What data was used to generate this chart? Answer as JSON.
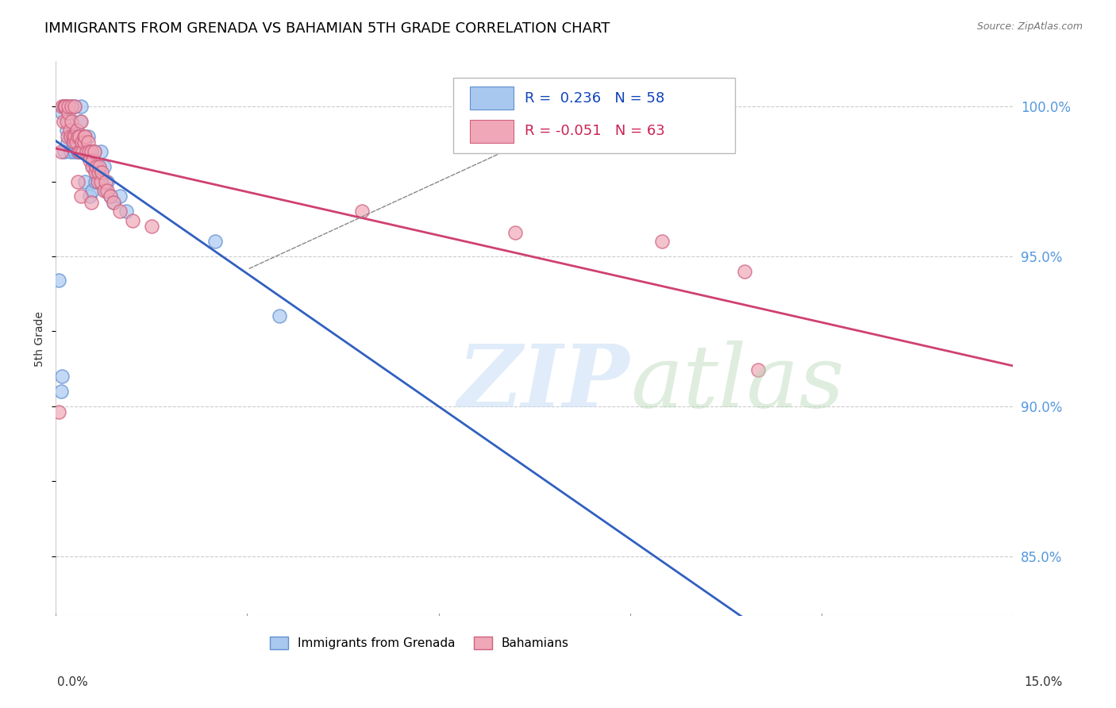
{
  "title": "IMMIGRANTS FROM GRENADA VS BAHAMIAN 5TH GRADE CORRELATION CHART",
  "source": "Source: ZipAtlas.com",
  "ylabel": "5th Grade",
  "y_ticks": [
    85.0,
    90.0,
    95.0,
    100.0
  ],
  "y_tick_labels": [
    "85.0%",
    "90.0%",
    "95.0%",
    "100.0%"
  ],
  "x_range": [
    0.0,
    15.0
  ],
  "y_range": [
    83.0,
    101.5
  ],
  "legend_label_blue": "Immigrants from Grenada",
  "legend_label_pink": "Bahamians",
  "R_blue": 0.236,
  "N_blue": 58,
  "R_pink": -0.051,
  "N_pink": 63,
  "blue_color": "#a8c8f0",
  "pink_color": "#f0a8b8",
  "blue_edge_color": "#6090d0",
  "pink_edge_color": "#d06080",
  "blue_line_color": "#3060c0",
  "pink_line_color": "#d04070",
  "blue_scatter_x": [
    0.05,
    0.08,
    0.1,
    0.1,
    0.12,
    0.13,
    0.13,
    0.15,
    0.15,
    0.15,
    0.17,
    0.18,
    0.2,
    0.2,
    0.22,
    0.23,
    0.25,
    0.25,
    0.27,
    0.28,
    0.3,
    0.3,
    0.32,
    0.33,
    0.35,
    0.36,
    0.37,
    0.38,
    0.4,
    0.41,
    0.42,
    0.44,
    0.45,
    0.46,
    0.48,
    0.5,
    0.52,
    0.53,
    0.55,
    0.57,
    0.58,
    0.6,
    0.62,
    0.63,
    0.65,
    0.67,
    0.68,
    0.7,
    0.72,
    0.75,
    0.78,
    0.8,
    0.85,
    0.9,
    1.0,
    1.1,
    2.5,
    3.5
  ],
  "blue_scatter_y": [
    94.2,
    90.5,
    91.0,
    99.8,
    100.0,
    100.0,
    98.5,
    100.0,
    100.0,
    100.0,
    99.2,
    98.8,
    99.5,
    100.0,
    99.0,
    98.5,
    99.5,
    100.0,
    98.8,
    99.0,
    98.5,
    100.0,
    99.2,
    98.8,
    98.5,
    99.0,
    98.5,
    99.5,
    100.0,
    98.8,
    98.5,
    99.0,
    98.8,
    97.5,
    98.5,
    99.0,
    98.5,
    97.0,
    98.5,
    97.2,
    98.0,
    98.5,
    97.5,
    97.8,
    98.0,
    97.5,
    97.8,
    98.5,
    97.5,
    98.0,
    97.2,
    97.5,
    97.0,
    96.8,
    97.0,
    96.5,
    95.5,
    93.0
  ],
  "pink_scatter_x": [
    0.05,
    0.08,
    0.1,
    0.12,
    0.13,
    0.15,
    0.15,
    0.15,
    0.17,
    0.18,
    0.2,
    0.2,
    0.22,
    0.23,
    0.25,
    0.25,
    0.27,
    0.28,
    0.3,
    0.3,
    0.32,
    0.33,
    0.35,
    0.36,
    0.37,
    0.38,
    0.4,
    0.41,
    0.42,
    0.44,
    0.45,
    0.46,
    0.48,
    0.5,
    0.52,
    0.53,
    0.55,
    0.57,
    0.58,
    0.6,
    0.62,
    0.63,
    0.65,
    0.67,
    0.68,
    0.7,
    0.72,
    0.75,
    0.78,
    0.8,
    0.85,
    0.9,
    1.0,
    1.2,
    1.5,
    4.8,
    7.2,
    9.5,
    10.8,
    11.0,
    0.35,
    0.4,
    0.55
  ],
  "pink_scatter_y": [
    89.8,
    98.5,
    100.0,
    99.5,
    100.0,
    100.0,
    100.0,
    100.0,
    99.5,
    99.0,
    99.8,
    100.0,
    99.2,
    99.0,
    99.5,
    100.0,
    99.0,
    98.8,
    99.0,
    100.0,
    98.8,
    99.2,
    99.0,
    98.5,
    99.0,
    98.5,
    99.5,
    98.8,
    98.5,
    99.0,
    98.8,
    99.0,
    98.5,
    98.8,
    98.5,
    98.2,
    98.5,
    98.0,
    98.2,
    98.5,
    97.8,
    98.0,
    97.5,
    97.8,
    98.0,
    97.5,
    97.8,
    97.2,
    97.5,
    97.2,
    97.0,
    96.8,
    96.5,
    96.2,
    96.0,
    96.5,
    95.8,
    95.5,
    94.5,
    91.2,
    97.5,
    97.0,
    96.8
  ]
}
